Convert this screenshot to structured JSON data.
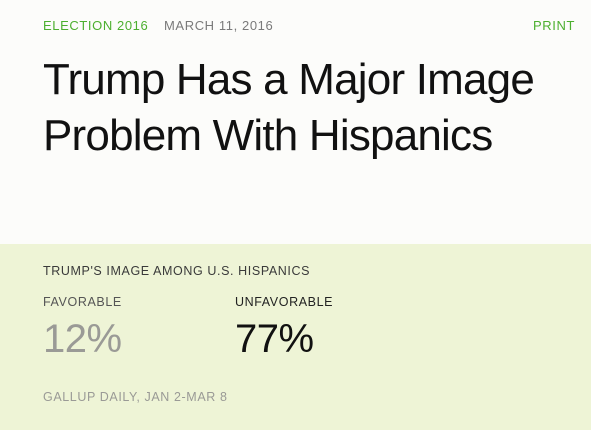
{
  "header": {
    "category": "ELECTION 2016",
    "date": "MARCH 11, 2016",
    "print_label": "PRINT"
  },
  "article": {
    "headline": "Trump Has a Major Image Problem With Hispanics"
  },
  "panel": {
    "title": "TRUMP'S IMAGE AMONG U.S. HISPANICS",
    "favorable": {
      "label": "FAVORABLE",
      "value": "12%"
    },
    "unfavorable": {
      "label": "UNFAVORABLE",
      "value": "77%"
    },
    "source": "GALLUP DAILY, JAN 2-MAR 8"
  },
  "colors": {
    "accent_green": "#4caf2f",
    "panel_background": "#eef4d6",
    "page_background": "#fcfcfa"
  }
}
